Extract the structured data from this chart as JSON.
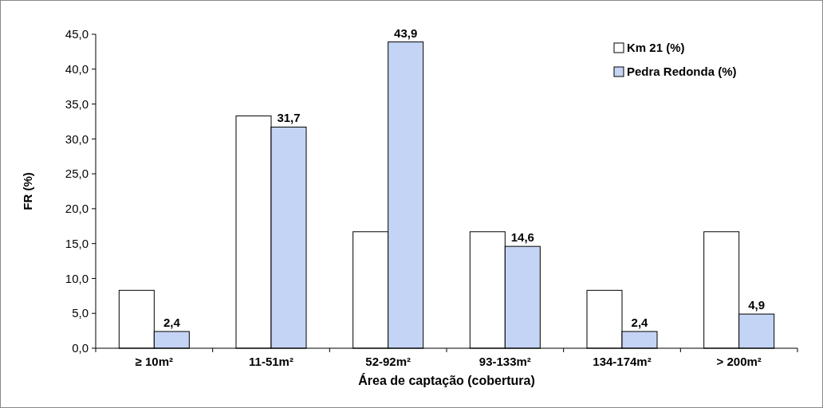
{
  "chart_data": {
    "type": "bar",
    "xlabel": "Área de captação (cobertura)",
    "ylabel": "FR (%)",
    "categories": [
      "≥ 10m²",
      "11-51m²",
      "52-92m²",
      "93-133m²",
      "134-174m²",
      "> 200m²"
    ],
    "series": [
      {
        "name": "Km 21 (%)",
        "color": "#ffffff",
        "values": [
          8.3,
          33.3,
          16.7,
          16.7,
          8.3,
          16.7
        ]
      },
      {
        "name": "Pedra Redonda (%)",
        "color": "#c4d4f4",
        "values": [
          2.4,
          31.7,
          43.9,
          14.6,
          2.4,
          4.9
        ],
        "value_labels": [
          "2,4",
          "31,7",
          "43,9",
          "14,6",
          "2,4",
          "4,9"
        ]
      }
    ],
    "ylim": [
      0,
      45
    ],
    "yticks": [
      {
        "value": 0,
        "label": "0,0"
      },
      {
        "value": 5,
        "label": "5,0"
      },
      {
        "value": 10,
        "label": "10,0"
      },
      {
        "value": 15,
        "label": "15,0"
      },
      {
        "value": 20,
        "label": "20,0"
      },
      {
        "value": 25,
        "label": "25,0"
      },
      {
        "value": 30,
        "label": "30,0"
      },
      {
        "value": 35,
        "label": "35,0"
      },
      {
        "value": 40,
        "label": "40,0"
      },
      {
        "value": 45,
        "label": "45,0"
      }
    ],
    "grid": false,
    "legend": "top right"
  }
}
